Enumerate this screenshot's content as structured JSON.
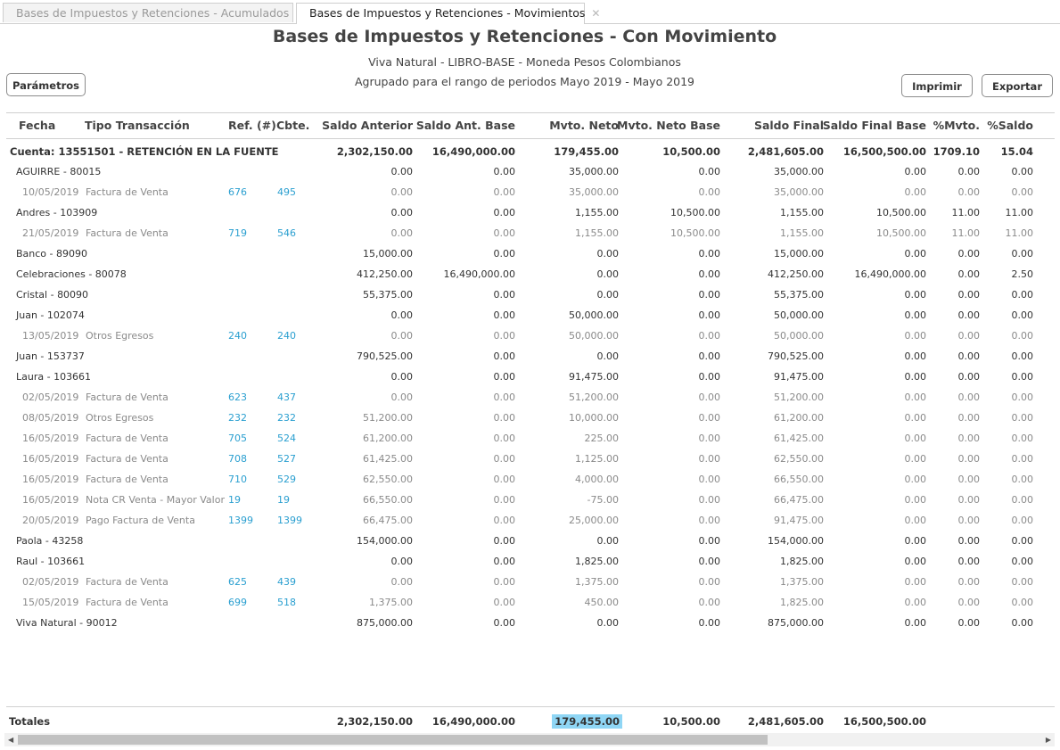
{
  "tabs": [
    {
      "label": "Bases de Impuestos y Retenciones - Acumulados"
    },
    {
      "label": "Bases de Impuestos y Retenciones - Movimientos"
    }
  ],
  "tab_close_glyph": "✕",
  "report": {
    "title": "Bases de Impuestos y Retenciones - Con Movimiento",
    "subtitle1": "Viva Natural - LIBRO-BASE - Moneda Pesos Colombianos",
    "subtitle2": "Agrupado para el rango de periodos Mayo 2019 - Mayo 2019"
  },
  "buttons": {
    "params": "Parámetros",
    "print": "Imprimir",
    "export": "Exportar"
  },
  "columns": [
    "Fecha",
    "Tipo Transacción",
    "Ref. (#)",
    "Cbte.",
    "Saldo Anterior",
    "Saldo Ant. Base",
    "Mvto. Neto",
    "Mvto. Neto Base",
    "Saldo Final",
    "Saldo Final Base",
    "%Mvto.",
    "%Saldo"
  ],
  "rows": [
    {
      "kind": "account",
      "label": "Cuenta: 13551501 - RETENCIÓN EN LA FUENTE",
      "v": [
        "2,302,150.00",
        "16,490,000.00",
        "179,455.00",
        "10,500.00",
        "2,481,605.00",
        "16,500,500.00",
        "1709.10",
        "15.04"
      ]
    },
    {
      "kind": "third",
      "label": "AGUIRRE - 80015",
      "v": [
        "0.00",
        "0.00",
        "35,000.00",
        "0.00",
        "35,000.00",
        "0.00",
        "0.00",
        "0.00"
      ]
    },
    {
      "kind": "detail",
      "date": "10/05/2019",
      "type": "Factura de Venta",
      "ref": "676",
      "cbte": "495",
      "v": [
        "0.00",
        "0.00",
        "35,000.00",
        "0.00",
        "35,000.00",
        "0.00",
        "0.00",
        "0.00"
      ]
    },
    {
      "kind": "third",
      "label": "Andres  - 103909",
      "v": [
        "0.00",
        "0.00",
        "1,155.00",
        "10,500.00",
        "1,155.00",
        "10,500.00",
        "11.00",
        "11.00"
      ]
    },
    {
      "kind": "detail",
      "date": "21/05/2019",
      "type": "Factura de Venta",
      "ref": "719",
      "cbte": "546",
      "v": [
        "0.00",
        "0.00",
        "1,155.00",
        "10,500.00",
        "1,155.00",
        "10,500.00",
        "11.00",
        "11.00"
      ]
    },
    {
      "kind": "third",
      "label": "Banco - 89090",
      "v": [
        "15,000.00",
        "0.00",
        "0.00",
        "0.00",
        "15,000.00",
        "0.00",
        "0.00",
        "0.00"
      ]
    },
    {
      "kind": "third",
      "label": "Celebraciones - 80078",
      "v": [
        "412,250.00",
        "16,490,000.00",
        "0.00",
        "0.00",
        "412,250.00",
        "16,490,000.00",
        "0.00",
        "2.50"
      ]
    },
    {
      "kind": "third",
      "label": "Cristal - 80090",
      "v": [
        "55,375.00",
        "0.00",
        "0.00",
        "0.00",
        "55,375.00",
        "0.00",
        "0.00",
        "0.00"
      ]
    },
    {
      "kind": "third",
      "label": "Juan - 102074",
      "v": [
        "0.00",
        "0.00",
        "50,000.00",
        "0.00",
        "50,000.00",
        "0.00",
        "0.00",
        "0.00"
      ]
    },
    {
      "kind": "detail",
      "date": "13/05/2019",
      "type": "Otros Egresos",
      "ref": "240",
      "cbte": "240",
      "v": [
        "0.00",
        "0.00",
        "50,000.00",
        "0.00",
        "50,000.00",
        "0.00",
        "0.00",
        "0.00"
      ]
    },
    {
      "kind": "third",
      "label": "Juan - 153737",
      "v": [
        "790,525.00",
        "0.00",
        "0.00",
        "0.00",
        "790,525.00",
        "0.00",
        "0.00",
        "0.00"
      ]
    },
    {
      "kind": "third",
      "label": "Laura - 103661",
      "v": [
        "0.00",
        "0.00",
        "91,475.00",
        "0.00",
        "91,475.00",
        "0.00",
        "0.00",
        "0.00"
      ]
    },
    {
      "kind": "detail",
      "date": "02/05/2019",
      "type": "Factura de Venta",
      "ref": "623",
      "cbte": "437",
      "v": [
        "0.00",
        "0.00",
        "51,200.00",
        "0.00",
        "51,200.00",
        "0.00",
        "0.00",
        "0.00"
      ]
    },
    {
      "kind": "detail",
      "date": "08/05/2019",
      "type": "Otros Egresos",
      "ref": "232",
      "cbte": "232",
      "v": [
        "51,200.00",
        "0.00",
        "10,000.00",
        "0.00",
        "61,200.00",
        "0.00",
        "0.00",
        "0.00"
      ]
    },
    {
      "kind": "detail",
      "date": "16/05/2019",
      "type": "Factura de Venta",
      "ref": "705",
      "cbte": "524",
      "v": [
        "61,200.00",
        "0.00",
        "225.00",
        "0.00",
        "61,425.00",
        "0.00",
        "0.00",
        "0.00"
      ]
    },
    {
      "kind": "detail",
      "date": "16/05/2019",
      "type": "Factura de Venta",
      "ref": "708",
      "cbte": "527",
      "v": [
        "61,425.00",
        "0.00",
        "1,125.00",
        "0.00",
        "62,550.00",
        "0.00",
        "0.00",
        "0.00"
      ]
    },
    {
      "kind": "detail",
      "date": "16/05/2019",
      "type": "Factura de Venta",
      "ref": "710",
      "cbte": "529",
      "v": [
        "62,550.00",
        "0.00",
        "4,000.00",
        "0.00",
        "66,550.00",
        "0.00",
        "0.00",
        "0.00"
      ]
    },
    {
      "kind": "detail",
      "date": "16/05/2019",
      "type": "Nota CR Venta - Mayor Valor",
      "ref": "19",
      "cbte": "19",
      "v": [
        "66,550.00",
        "0.00",
        "-75.00",
        "0.00",
        "66,475.00",
        "0.00",
        "0.00",
        "0.00"
      ]
    },
    {
      "kind": "detail",
      "date": "20/05/2019",
      "type": "Pago Factura de Venta",
      "ref": "1399",
      "cbte": "1399",
      "v": [
        "66,475.00",
        "0.00",
        "25,000.00",
        "0.00",
        "91,475.00",
        "0.00",
        "0.00",
        "0.00"
      ]
    },
    {
      "kind": "third",
      "label": "Paola - 43258",
      "v": [
        "154,000.00",
        "0.00",
        "0.00",
        "0.00",
        "154,000.00",
        "0.00",
        "0.00",
        "0.00"
      ]
    },
    {
      "kind": "third",
      "label": "Raul - 103661",
      "v": [
        "0.00",
        "0.00",
        "1,825.00",
        "0.00",
        "1,825.00",
        "0.00",
        "0.00",
        "0.00"
      ]
    },
    {
      "kind": "detail",
      "date": "02/05/2019",
      "type": "Factura de Venta",
      "ref": "625",
      "cbte": "439",
      "v": [
        "0.00",
        "0.00",
        "1,375.00",
        "0.00",
        "1,375.00",
        "0.00",
        "0.00",
        "0.00"
      ]
    },
    {
      "kind": "detail",
      "date": "15/05/2019",
      "type": "Factura de Venta",
      "ref": "699",
      "cbte": "518",
      "v": [
        "1,375.00",
        "0.00",
        "450.00",
        "0.00",
        "1,825.00",
        "0.00",
        "0.00",
        "0.00"
      ]
    },
    {
      "kind": "third",
      "label": "Viva Natural - 90012",
      "v": [
        "875,000.00",
        "0.00",
        "0.00",
        "0.00",
        "875,000.00",
        "0.00",
        "0.00",
        "0.00"
      ]
    }
  ],
  "totals": {
    "label": "Totales",
    "v": [
      "2,302,150.00",
      "16,490,000.00",
      "179,455.00",
      "10,500.00",
      "2,481,605.00",
      "16,500,500.00"
    ]
  },
  "scrollbar": {
    "left_arrow": "◀",
    "right_arrow": "▶"
  },
  "colors": {
    "link": "#2a9fd0",
    "highlight": "#8fd6f5"
  }
}
